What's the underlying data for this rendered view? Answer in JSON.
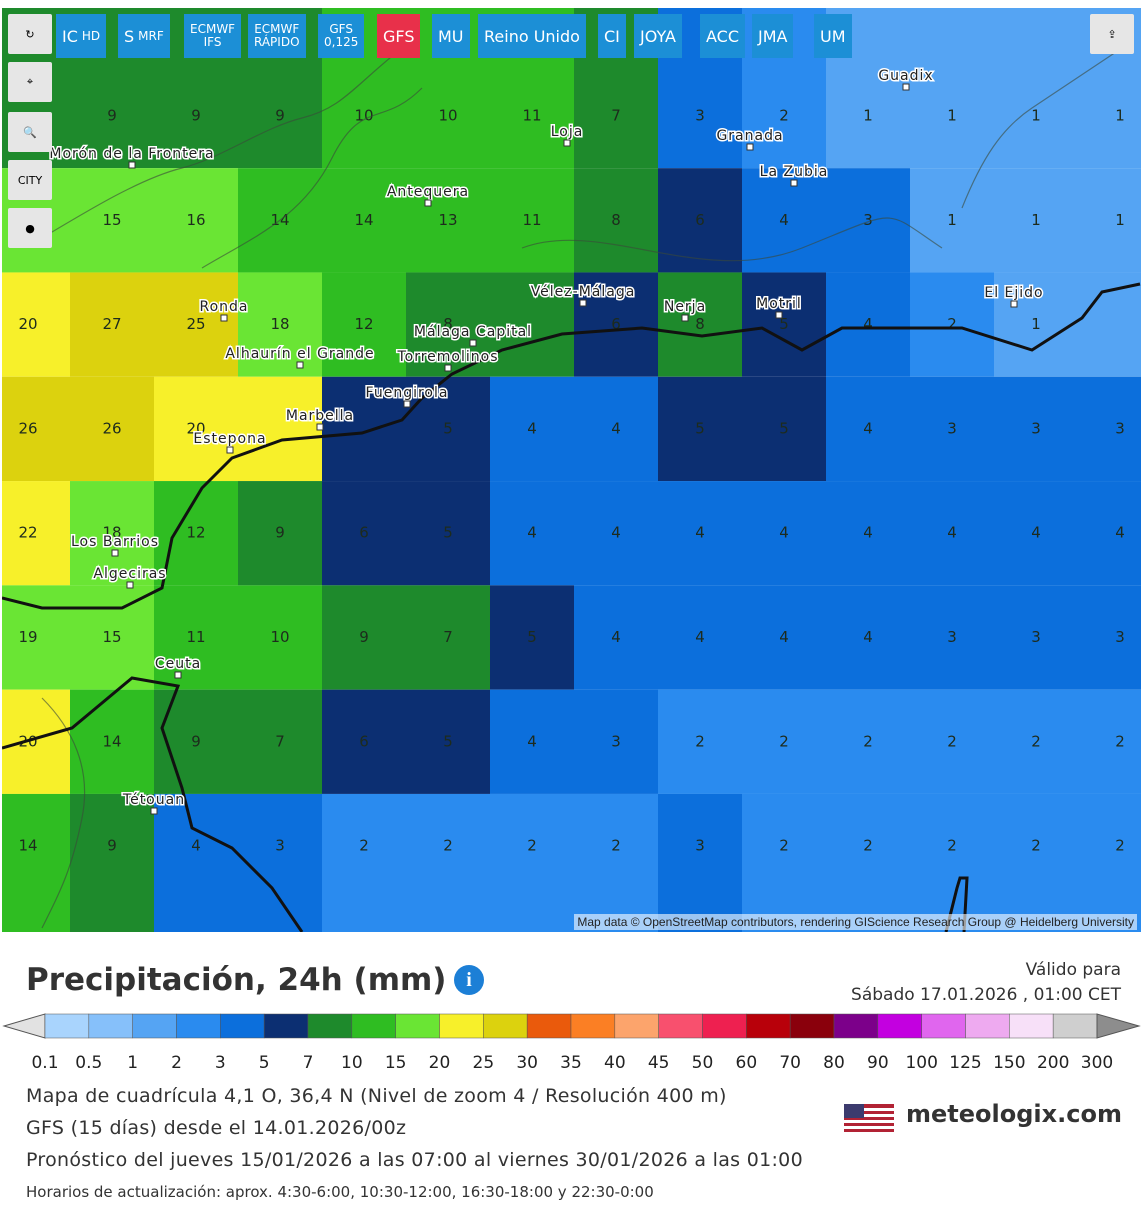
{
  "toolbar": {
    "buttons": [
      {
        "main": "IC",
        "sub": "HD"
      },
      {
        "main": "S",
        "sub": "MRF"
      },
      {
        "main": "ECMWF",
        "sub": "IFS"
      },
      {
        "main": "ECMWF",
        "sub": "RÁPIDO"
      },
      {
        "main": "GFS",
        "sub": "0,125"
      },
      {
        "main": "GFS",
        "active": true
      },
      {
        "main": "MU"
      },
      {
        "main": "Reino Unido"
      },
      {
        "main": "CI"
      },
      {
        "main": "JOYA"
      },
      {
        "main": "ACC"
      },
      {
        "main": "JMA"
      },
      {
        "main": "UM"
      }
    ],
    "city_toggle": "CITY"
  },
  "map": {
    "grid": [
      [
        null,
        9,
        9,
        9,
        10,
        10,
        11,
        7,
        3,
        2,
        1,
        1,
        1,
        1
      ],
      [
        null,
        15,
        16,
        14,
        14,
        13,
        11,
        8,
        6,
        4,
        3,
        1,
        1,
        1
      ],
      [
        20,
        27,
        25,
        18,
        12,
        8,
        null,
        6,
        8,
        5,
        4,
        2,
        1,
        null
      ],
      [
        26,
        26,
        20,
        null,
        null,
        5,
        4,
        4,
        5,
        5,
        4,
        3,
        3,
        3
      ],
      [
        22,
        18,
        12,
        9,
        6,
        5,
        4,
        4,
        4,
        4,
        4,
        4,
        4,
        4
      ],
      [
        19,
        15,
        11,
        10,
        9,
        7,
        5,
        4,
        4,
        4,
        4,
        3,
        3,
        3
      ],
      [
        20,
        14,
        9,
        7,
        6,
        5,
        4,
        3,
        2,
        2,
        2,
        2,
        2,
        2
      ],
      [
        14,
        9,
        4,
        3,
        2,
        2,
        2,
        2,
        3,
        2,
        2,
        2,
        2,
        2
      ]
    ],
    "cities": [
      "Guadix",
      "Granada",
      "La Zubia",
      "Loja",
      "Morón de la Frontera",
      "Antequera",
      "Vélez-Málaga",
      "Nerja",
      "Motril",
      "El Ejido",
      "Ronda",
      "Alhaurín el Grande",
      "Málaga Capital",
      "Torremolinos",
      "Fuengirola",
      "Marbella",
      "Estepona",
      "Los Barrios",
      "Algeciras",
      "Ceuta",
      "Tétouan"
    ],
    "attribution": "Map data © OpenStreetMap contributors, rendering GIScience Research Group @ Heidelberg University"
  },
  "header": {
    "title": "Precipitación, 24h (mm)",
    "valid_label": "Válido para",
    "valid_date": "Sábado 17.01.2026 , 01:00 CET"
  },
  "legend": {
    "labels": [
      0.1,
      0.5,
      1,
      2,
      3,
      5,
      7,
      10,
      15,
      20,
      25,
      30,
      35,
      40,
      45,
      50,
      60,
      70,
      80,
      90,
      100,
      125,
      150,
      200,
      300
    ],
    "colors": [
      "#a9d4fd",
      "#86c0fa",
      "#55a4f3",
      "#2a8bef",
      "#0c6fdc",
      "#0c2f72",
      "#1e8a2c",
      "#2fbd22",
      "#6ae534",
      "#f7f02a",
      "#dcd20e",
      "#ea5a0c",
      "#fb7f24",
      "#fca46c",
      "#f8506e",
      "#ee2050",
      "#b8000a",
      "#8a000c",
      "#7c008a",
      "#c300e0",
      "#e066ee",
      "#eeaaf0",
      "#f7e0f8",
      "#cfcfcf"
    ],
    "low_color": "#e2e2e2",
    "high_color": "#8d8d8d"
  },
  "info": {
    "lines": [
      "Mapa de cuadrícula 4,1 O, 36,4 N (Nivel de zoom 4 / Resolución 400 m)",
      "GFS (15 días) desde el 14.01.2026/00z",
      "Pronóstico del jueves 15/01/2026 a las 07:00 al viernes 30/01/2026 a las 01:00"
    ],
    "update": "Horarios de actualización: aprox. 4:30-6:00, 10:30-12:00, 16:30-18:00 y 22:30-0:00",
    "brand": "meteologix.com"
  }
}
